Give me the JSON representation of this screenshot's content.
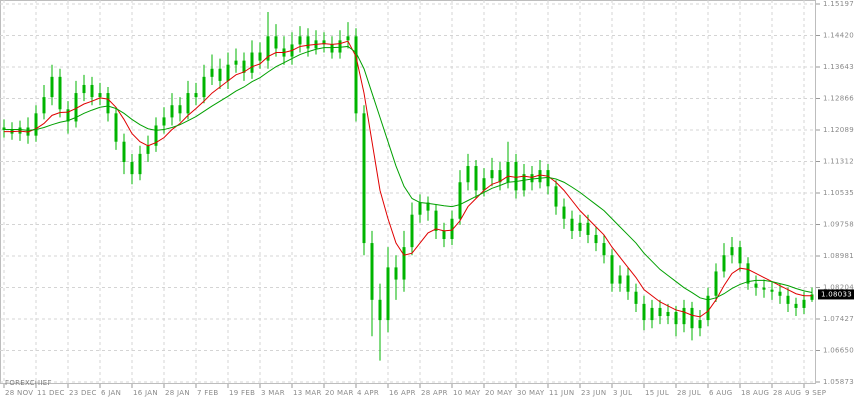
{
  "chart_data": {
    "type": "candlestick",
    "watermark": "FOREXCHIEF",
    "color": "#00b400",
    "ylim": [
      1.05873,
      1.15197
    ],
    "yticks": [
      1.15197,
      {
        "value": 1.1442,
        "label": "1.14420"
      },
      1.13643,
      1.12866,
      1.12089,
      1.11312,
      1.10535,
      1.09758,
      1.08981,
      1.08204,
      1.07427,
      {
        "value": 1.0665,
        "label": "1.06650"
      },
      1.05873
    ],
    "grid": true,
    "categories": [
      "28 NOV",
      null,
      null,
      null,
      "11 DEC",
      null,
      null,
      null,
      "23 DEC",
      null,
      null,
      null,
      "6 JAN",
      null,
      null,
      null,
      "16 JAN",
      null,
      null,
      null,
      "28 JAN",
      null,
      null,
      null,
      "7 FEB",
      null,
      null,
      null,
      "19 FEB",
      null,
      null,
      null,
      "3 MAR",
      null,
      null,
      null,
      "13 MAR",
      null,
      null,
      null,
      "20 MAR",
      null,
      null,
      null,
      "4 APR",
      null,
      null,
      null,
      "16 APR",
      null,
      null,
      null,
      "28 APR",
      null,
      null,
      null,
      "10 MAY",
      null,
      null,
      null,
      "20 MAY",
      null,
      null,
      null,
      "30 MAY",
      null,
      null,
      null,
      "11 JUN",
      null,
      null,
      null,
      "23 JUN",
      null,
      null,
      null,
      "3 JUL",
      null,
      null,
      null,
      "15 JUL",
      null,
      null,
      null,
      "28 JUL",
      null,
      null,
      null,
      "6 AUG",
      null,
      null,
      null,
      "18 AUG",
      null,
      null,
      null,
      "28 AUG",
      null,
      null,
      null,
      "9 SEP",
      null
    ],
    "open": [
      1.1215,
      1.1209,
      1.12,
      1.1215,
      1.1195,
      1.125,
      1.129,
      1.134,
      1.126,
      1.123,
      1.13,
      1.132,
      1.129,
      1.13,
      1.125,
      1.118,
      1.113,
      1.11,
      1.115,
      1.117,
      1.122,
      1.124,
      1.127,
      1.125,
      1.13,
      1.129,
      1.134,
      1.136,
      1.133,
      1.137,
      1.138,
      1.135,
      1.14,
      1.138,
      1.144,
      1.141,
      1.139,
      1.142,
      1.144,
      1.141,
      1.143,
      1.142,
      1.14,
      1.143,
      1.144,
      1.125,
      1.093,
      1.079,
      1.074,
      1.087,
      1.084,
      1.092,
      1.1,
      1.103,
      1.101,
      1.096,
      1.094,
      1.099,
      1.108,
      1.112,
      1.106,
      1.109,
      1.111,
      1.108,
      1.113,
      1.106,
      1.11,
      1.108,
      1.111,
      1.107,
      1.102,
      1.099,
      1.096,
      1.098,
      1.095,
      1.093,
      1.09,
      1.083,
      1.085,
      1.081,
      1.078,
      1.074,
      1.077,
      1.075,
      1.076,
      1.073,
      1.077,
      1.072,
      1.074,
      1.08,
      1.086,
      1.09,
      1.092,
      1.088,
      1.083,
      1.082,
      1.0815,
      1.081,
      1.08,
      1.078,
      1.077,
      1.079
    ],
    "high": [
      1.1235,
      1.1228,
      1.1232,
      1.124,
      1.127,
      1.132,
      1.137,
      1.136,
      1.128,
      1.133,
      1.1345,
      1.134,
      1.1325,
      1.1315,
      1.1265,
      1.12,
      1.115,
      1.117,
      1.1195,
      1.124,
      1.1265,
      1.13,
      1.129,
      1.133,
      1.1325,
      1.137,
      1.1395,
      1.1385,
      1.14,
      1.141,
      1.14,
      1.143,
      1.1425,
      1.15,
      1.147,
      1.144,
      1.145,
      1.1465,
      1.146,
      1.1455,
      1.145,
      1.144,
      1.1455,
      1.1475,
      1.146,
      1.127,
      1.096,
      1.083,
      1.092,
      1.09,
      1.096,
      1.103,
      1.105,
      1.1045,
      1.1025,
      1.098,
      1.101,
      1.111,
      1.115,
      1.1135,
      1.1115,
      1.114,
      1.113,
      1.118,
      1.115,
      1.1125,
      1.112,
      1.1135,
      1.1125,
      1.1085,
      1.104,
      1.101,
      1.1,
      1.1,
      1.097,
      1.095,
      1.0915,
      1.0875,
      1.087,
      1.083,
      1.08,
      1.079,
      1.079,
      1.078,
      1.0775,
      1.079,
      1.0785,
      1.0765,
      1.082,
      1.088,
      1.093,
      1.0945,
      1.0935,
      1.0895,
      1.085,
      1.084,
      1.0835,
      1.083,
      1.082,
      1.0795,
      1.081,
      1.082
    ],
    "low": [
      1.119,
      1.1185,
      1.1182,
      1.1175,
      1.118,
      1.1235,
      1.127,
      1.124,
      1.12,
      1.1215,
      1.128,
      1.127,
      1.127,
      1.123,
      1.116,
      1.11,
      1.1075,
      1.1085,
      1.113,
      1.1155,
      1.12,
      1.122,
      1.123,
      1.1235,
      1.127,
      1.1275,
      1.132,
      1.131,
      1.131,
      1.135,
      1.133,
      1.1335,
      1.136,
      1.136,
      1.139,
      1.137,
      1.137,
      1.14,
      1.139,
      1.1395,
      1.14,
      1.1385,
      1.1385,
      1.141,
      1.123,
      1.09,
      1.07,
      1.064,
      1.071,
      1.079,
      1.081,
      1.09,
      1.098,
      1.0985,
      1.094,
      1.092,
      1.0925,
      1.0975,
      1.106,
      1.104,
      1.1045,
      1.107,
      1.106,
      1.1065,
      1.104,
      1.1045,
      1.106,
      1.1065,
      1.105,
      1.1,
      1.0965,
      1.094,
      1.0945,
      1.093,
      1.091,
      1.088,
      1.081,
      1.081,
      1.079,
      1.076,
      1.0715,
      1.072,
      1.073,
      1.073,
      1.07,
      1.071,
      1.069,
      1.07,
      1.0725,
      1.0785,
      1.0845,
      1.088,
      1.086,
      1.0815,
      1.08,
      1.0795,
      1.079,
      1.078,
      1.076,
      1.075,
      1.0755,
      1.0785
    ],
    "close": [
      1.1209,
      1.12,
      1.1215,
      1.1195,
      1.125,
      1.129,
      1.134,
      1.126,
      1.123,
      1.13,
      1.132,
      1.129,
      1.13,
      1.125,
      1.118,
      1.113,
      1.11,
      1.115,
      1.117,
      1.122,
      1.124,
      1.127,
      1.125,
      1.13,
      1.129,
      1.134,
      1.136,
      1.133,
      1.137,
      1.138,
      1.135,
      1.14,
      1.138,
      1.144,
      1.141,
      1.139,
      1.142,
      1.144,
      1.141,
      1.143,
      1.142,
      1.14,
      1.143,
      1.144,
      1.125,
      1.093,
      1.079,
      1.074,
      1.087,
      1.084,
      1.092,
      1.1,
      1.103,
      1.101,
      1.096,
      1.094,
      1.099,
      1.108,
      1.112,
      1.106,
      1.109,
      1.111,
      1.108,
      1.113,
      1.106,
      1.11,
      1.108,
      1.111,
      1.107,
      1.102,
      1.099,
      1.096,
      1.098,
      1.095,
      1.093,
      1.09,
      1.083,
      1.085,
      1.081,
      1.078,
      1.074,
      1.077,
      1.075,
      1.076,
      1.073,
      1.077,
      1.072,
      1.074,
      1.08,
      1.086,
      1.09,
      1.092,
      1.088,
      1.083,
      1.082,
      1.0815,
      1.081,
      1.08,
      1.078,
      1.077,
      1.079,
      1.08033
    ],
    "lines": [
      {
        "color": "#e00000",
        "values": [
          1.1205,
          1.1205,
          1.1206,
          1.1204,
          1.1212,
          1.1225,
          1.1245,
          1.1252,
          1.1253,
          1.1262,
          1.1273,
          1.128,
          1.1288,
          1.1285,
          1.1265,
          1.1235,
          1.12,
          1.118,
          1.117,
          1.1178,
          1.119,
          1.121,
          1.1225,
          1.1245,
          1.1262,
          1.128,
          1.13,
          1.1315,
          1.133,
          1.1345,
          1.1352,
          1.1365,
          1.1372,
          1.139,
          1.14,
          1.14,
          1.1405,
          1.1415,
          1.1418,
          1.142,
          1.1422,
          1.142,
          1.1422,
          1.1428,
          1.139,
          1.13,
          1.118,
          1.106,
          1.099,
          1.093,
          1.09,
          1.0905,
          1.093,
          1.0955,
          1.0965,
          1.096,
          1.0962,
          1.0985,
          1.102,
          1.104,
          1.106,
          1.1075,
          1.1082,
          1.1095,
          1.1092,
          1.1095,
          1.1092,
          1.1098,
          1.1095,
          1.108,
          1.106,
          1.1035,
          1.101,
          1.099,
          1.097,
          1.095,
          1.092,
          1.0895,
          1.087,
          1.0845,
          1.0815,
          1.08,
          1.0785,
          1.0775,
          1.0765,
          1.076,
          1.0752,
          1.0748,
          1.0762,
          1.079,
          1.0825,
          1.0855,
          1.0868,
          1.0865,
          1.0855,
          1.0845,
          1.0835,
          1.0825,
          1.0815,
          1.0805,
          1.08,
          1.08
        ]
      },
      {
        "color": "#00a000",
        "values": [
          1.121,
          1.121,
          1.121,
          1.1208,
          1.121,
          1.1215,
          1.1222,
          1.1228,
          1.1232,
          1.124,
          1.125,
          1.1258,
          1.1265,
          1.1268,
          1.1262,
          1.125,
          1.1235,
          1.1222,
          1.1212,
          1.1208,
          1.121,
          1.1215,
          1.1222,
          1.1232,
          1.1242,
          1.1255,
          1.1268,
          1.128,
          1.1292,
          1.1305,
          1.1315,
          1.1328,
          1.1338,
          1.1352,
          1.1365,
          1.1375,
          1.1385,
          1.1395,
          1.1402,
          1.1408,
          1.1412,
          1.1412,
          1.1413,
          1.1415,
          1.14,
          1.136,
          1.13,
          1.124,
          1.118,
          1.112,
          1.107,
          1.104,
          1.103,
          1.1028,
          1.1025,
          1.1022,
          1.102,
          1.1025,
          1.1035,
          1.1045,
          1.1055,
          1.1065,
          1.1072,
          1.108,
          1.1082,
          1.1085,
          1.1088,
          1.109,
          1.1092,
          1.1088,
          1.108,
          1.1068,
          1.1055,
          1.104,
          1.1025,
          1.101,
          1.099,
          1.097,
          1.095,
          1.093,
          1.0905,
          1.0885,
          1.0865,
          1.085,
          1.0835,
          1.082,
          1.0808,
          1.0795,
          1.079,
          1.0795,
          1.0805,
          1.0818,
          1.0828,
          1.0835,
          1.0838,
          1.0838,
          1.0835,
          1.083,
          1.0825,
          1.0818,
          1.0812,
          1.0808
        ]
      }
    ]
  }
}
